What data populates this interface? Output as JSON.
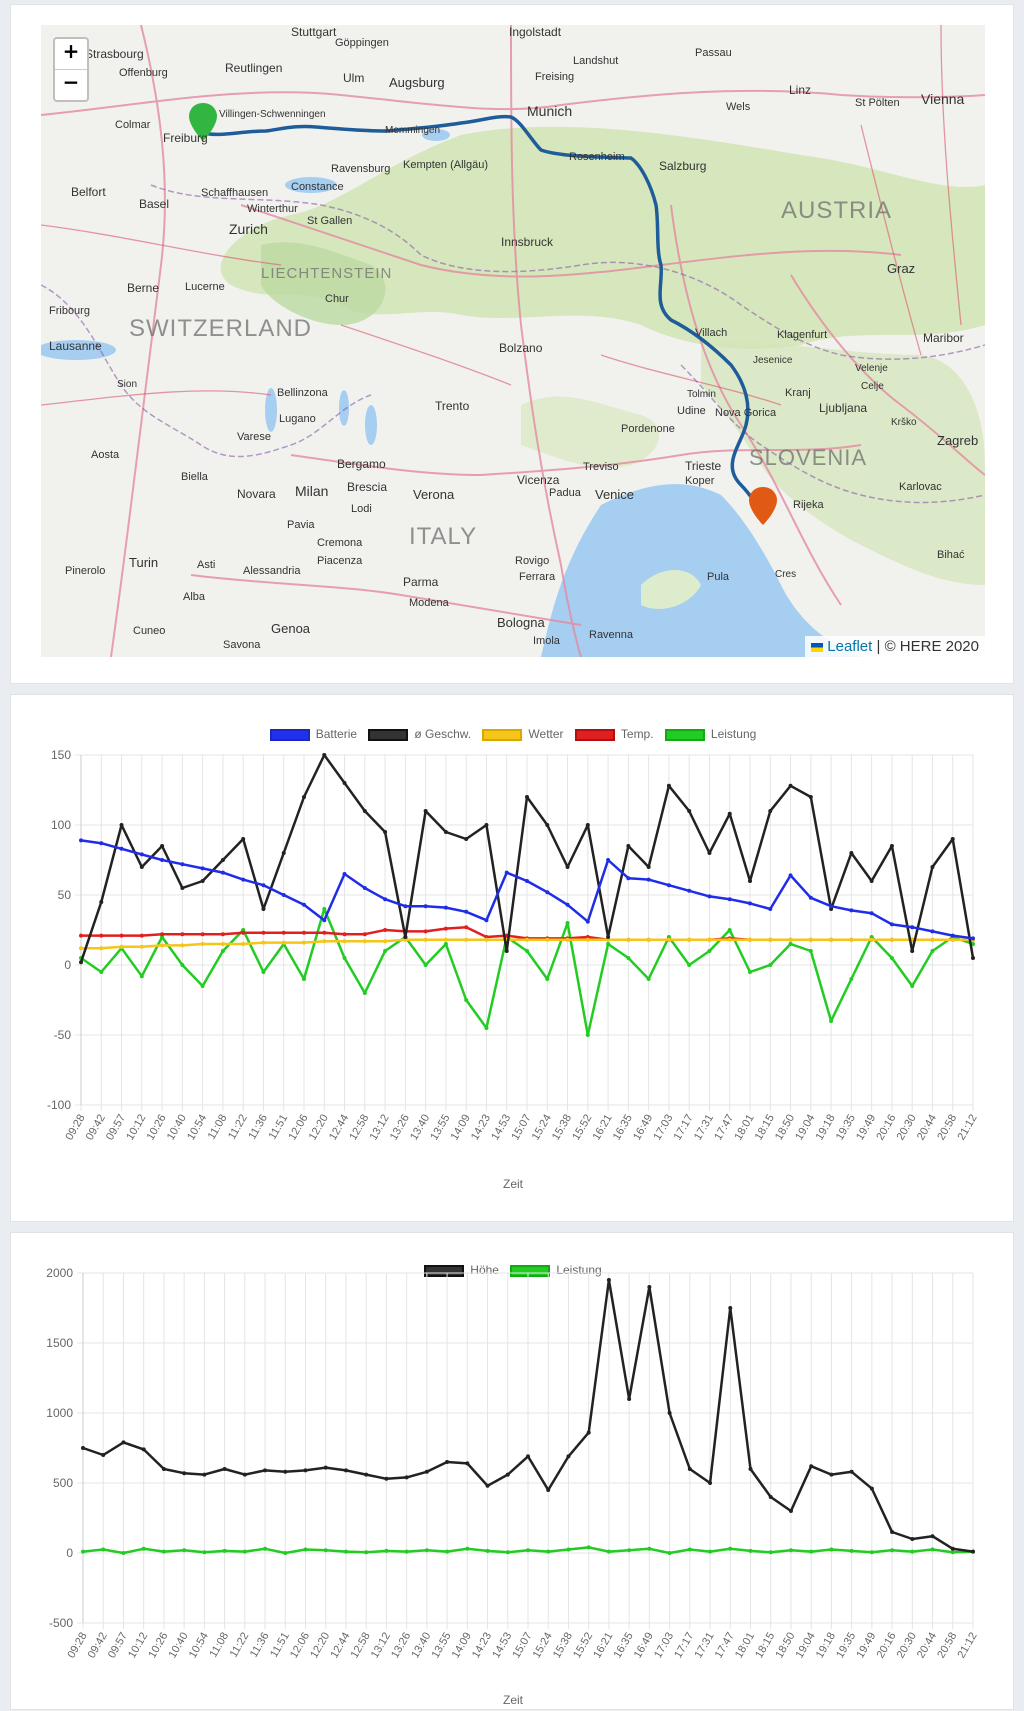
{
  "map": {
    "zoom_in": "+",
    "zoom_out": "−",
    "attribution_link": "Leaflet",
    "attribution_sep": " | ",
    "attribution_text": "© HERE 2020",
    "countries": [
      "SWITZERLAND",
      "AUSTRIA",
      "ITALY",
      "SLOVENIA",
      "LIECHTENSTEIN"
    ],
    "cities": [
      "Stuttgart",
      "Ingolstadt",
      "Landshut",
      "Passau",
      "Strasbourg",
      "Offenburg",
      "Göppingen",
      "Reutlingen",
      "Ulm",
      "Augsburg",
      "Freising",
      "Munich",
      "Linz",
      "St Pölten",
      "Vienna",
      "Wels",
      "Colmar",
      "Freiburg",
      "Villingen-Schwenningen",
      "Memmingen",
      "Rosenheim",
      "Salzburg",
      "Belfort",
      "Basel",
      "Schaffhausen",
      "Constance",
      "Ravensburg",
      "Kempten (Allgäu)",
      "Zurich",
      "Winterthur",
      "St Gallen",
      "Innsbruck",
      "Graz",
      "Berne",
      "Lucerne",
      "Chur",
      "Villach",
      "Klagenfurt",
      "Maribor",
      "Lausanne",
      "Fribourg",
      "Bolzano",
      "Kranj",
      "Ljubljana",
      "Bellinzona",
      "Lugano",
      "Trento",
      "Udine",
      "Nova Gorica",
      "Varese",
      "Bergamo",
      "Brescia",
      "Milan",
      "Verona",
      "Vicenza",
      "Padua",
      "Treviso",
      "Venice",
      "Trieste",
      "Koper",
      "Rijeka",
      "Zagreb",
      "Karlovac",
      "Biella",
      "Novara",
      "Lodi",
      "Pavia",
      "Cremona",
      "Piacenza",
      "Parma",
      "Modena",
      "Bologna",
      "Ferrara",
      "Rovigo",
      "Turin",
      "Asti",
      "Alessandria",
      "Pinerolo",
      "Alba",
      "Cuneo",
      "Genoa",
      "Savona",
      "Ravenna",
      "Imola",
      "Pula",
      "Cres",
      "Aosta",
      "Sion",
      "Pordenone",
      "Tolmin",
      "Jesenice",
      "Velenje",
      "Celje",
      "Krško",
      "Bihać"
    ]
  },
  "chart1": {
    "legend": [
      {
        "label": "Batterie",
        "color": "#1f2de8"
      },
      {
        "label": "ø Geschw.",
        "color": "#222222"
      },
      {
        "label": "Wetter",
        "color": "#f5c518"
      },
      {
        "label": "Temp.",
        "color": "#e02020"
      },
      {
        "label": "Leistung",
        "color": "#22cc22"
      }
    ],
    "xlabel": "Zeit"
  },
  "chart2": {
    "legend": [
      {
        "label": "Höhe",
        "color": "#222222"
      },
      {
        "label": "Leistung",
        "color": "#22cc22"
      }
    ],
    "xlabel": "Zeit"
  },
  "chart_data": [
    {
      "type": "line",
      "categories": [
        "09:28",
        "09:42",
        "09:57",
        "10:12",
        "10:26",
        "10:40",
        "10:54",
        "11:08",
        "11:22",
        "11:36",
        "11:51",
        "12:06",
        "12:20",
        "12:44",
        "12:58",
        "13:12",
        "13:26",
        "13:40",
        "13:55",
        "14:09",
        "14:23",
        "14:53",
        "15:07",
        "15:24",
        "15:38",
        "15:52",
        "16:21",
        "16:35",
        "16:49",
        "17:03",
        "17:17",
        "17:31",
        "17:47",
        "18:01",
        "18:15",
        "18:50",
        "19:04",
        "19:18",
        "19:35",
        "19:49",
        "20:16",
        "20:30",
        "20:44",
        "20:58",
        "21:12"
      ],
      "ylim": [
        -100,
        150
      ],
      "yticks": [
        -100,
        -50,
        0,
        50,
        100,
        150
      ],
      "xlabel": "Zeit",
      "series": [
        {
          "name": "Batterie",
          "values": [
            89,
            87,
            83,
            79,
            75,
            72,
            69,
            66,
            61,
            57,
            50,
            43,
            32,
            65,
            55,
            47,
            42,
            42,
            41,
            38,
            32,
            66,
            60,
            52,
            43,
            31,
            75,
            62,
            61,
            57,
            53,
            49,
            47,
            44,
            40,
            64,
            48,
            42,
            39,
            37,
            29,
            27,
            24,
            21,
            19
          ]
        },
        {
          "name": "ø Geschw.",
          "values": [
            2,
            45,
            100,
            70,
            85,
            55,
            60,
            75,
            90,
            40,
            80,
            120,
            150,
            130,
            110,
            95,
            20,
            110,
            95,
            90,
            100,
            10,
            120,
            100,
            70,
            100,
            20,
            85,
            70,
            128,
            110,
            80,
            108,
            60,
            110,
            128,
            120,
            40,
            80,
            60,
            85,
            10,
            70,
            90,
            5
          ]
        },
        {
          "name": "Wetter",
          "values": [
            12,
            12,
            13,
            13,
            14,
            14,
            15,
            15,
            15,
            16,
            16,
            16,
            17,
            17,
            17,
            17,
            18,
            18,
            18,
            18,
            18,
            18,
            18,
            18,
            18,
            18,
            18,
            18,
            18,
            18,
            18,
            18,
            18,
            18,
            18,
            18,
            18,
            18,
            18,
            18,
            18,
            18,
            18,
            18,
            18
          ]
        },
        {
          "name": "Temp.",
          "values": [
            21,
            21,
            21,
            21,
            22,
            22,
            22,
            22,
            23,
            23,
            23,
            23,
            23,
            22,
            22,
            25,
            24,
            24,
            26,
            27,
            20,
            21,
            19,
            19,
            19,
            20,
            18,
            18,
            18,
            18,
            18,
            18,
            19,
            18,
            18,
            18,
            18,
            18,
            18,
            18,
            18,
            18,
            18,
            18,
            18
          ]
        },
        {
          "name": "Leistung",
          "values": [
            5,
            -5,
            12,
            -8,
            20,
            0,
            -15,
            10,
            25,
            -5,
            15,
            -10,
            40,
            5,
            -20,
            10,
            20,
            0,
            15,
            -25,
            -45,
            20,
            10,
            -10,
            30,
            -50,
            15,
            5,
            -10,
            20,
            0,
            10,
            25,
            -5,
            0,
            15,
            10,
            -40,
            -10,
            20,
            5,
            -15,
            10,
            20,
            15
          ]
        }
      ]
    },
    {
      "type": "line",
      "categories": [
        "09:28",
        "09:42",
        "09:57",
        "10:12",
        "10:26",
        "10:40",
        "10:54",
        "11:08",
        "11:22",
        "11:36",
        "11:51",
        "12:06",
        "12:20",
        "12:44",
        "12:58",
        "13:12",
        "13:26",
        "13:40",
        "13:55",
        "14:09",
        "14:23",
        "14:53",
        "15:07",
        "15:24",
        "15:38",
        "15:52",
        "16:21",
        "16:35",
        "16:49",
        "17:03",
        "17:17",
        "17:31",
        "17:47",
        "18:01",
        "18:15",
        "18:50",
        "19:04",
        "19:18",
        "19:35",
        "19:49",
        "20:16",
        "20:30",
        "20:44",
        "20:58",
        "21:12"
      ],
      "ylim": [
        -500,
        2000
      ],
      "yticks": [
        -500,
        0,
        500,
        1000,
        1500,
        2000
      ],
      "xlabel": "Zeit",
      "series": [
        {
          "name": "Höhe",
          "values": [
            750,
            700,
            790,
            740,
            600,
            570,
            560,
            600,
            560,
            590,
            580,
            590,
            610,
            590,
            560,
            530,
            540,
            580,
            650,
            640,
            480,
            560,
            690,
            450,
            690,
            860,
            1950,
            1100,
            1900,
            1000,
            600,
            500,
            1750,
            600,
            400,
            300,
            620,
            560,
            580,
            460,
            150,
            100,
            120,
            30,
            10
          ]
        },
        {
          "name": "Leistung",
          "values": [
            10,
            25,
            0,
            30,
            10,
            20,
            5,
            15,
            10,
            30,
            0,
            25,
            20,
            10,
            5,
            15,
            10,
            20,
            10,
            30,
            15,
            5,
            20,
            10,
            25,
            40,
            10,
            20,
            30,
            0,
            25,
            10,
            30,
            15,
            5,
            20,
            10,
            25,
            15,
            5,
            20,
            10,
            25,
            5,
            10
          ]
        }
      ]
    }
  ]
}
